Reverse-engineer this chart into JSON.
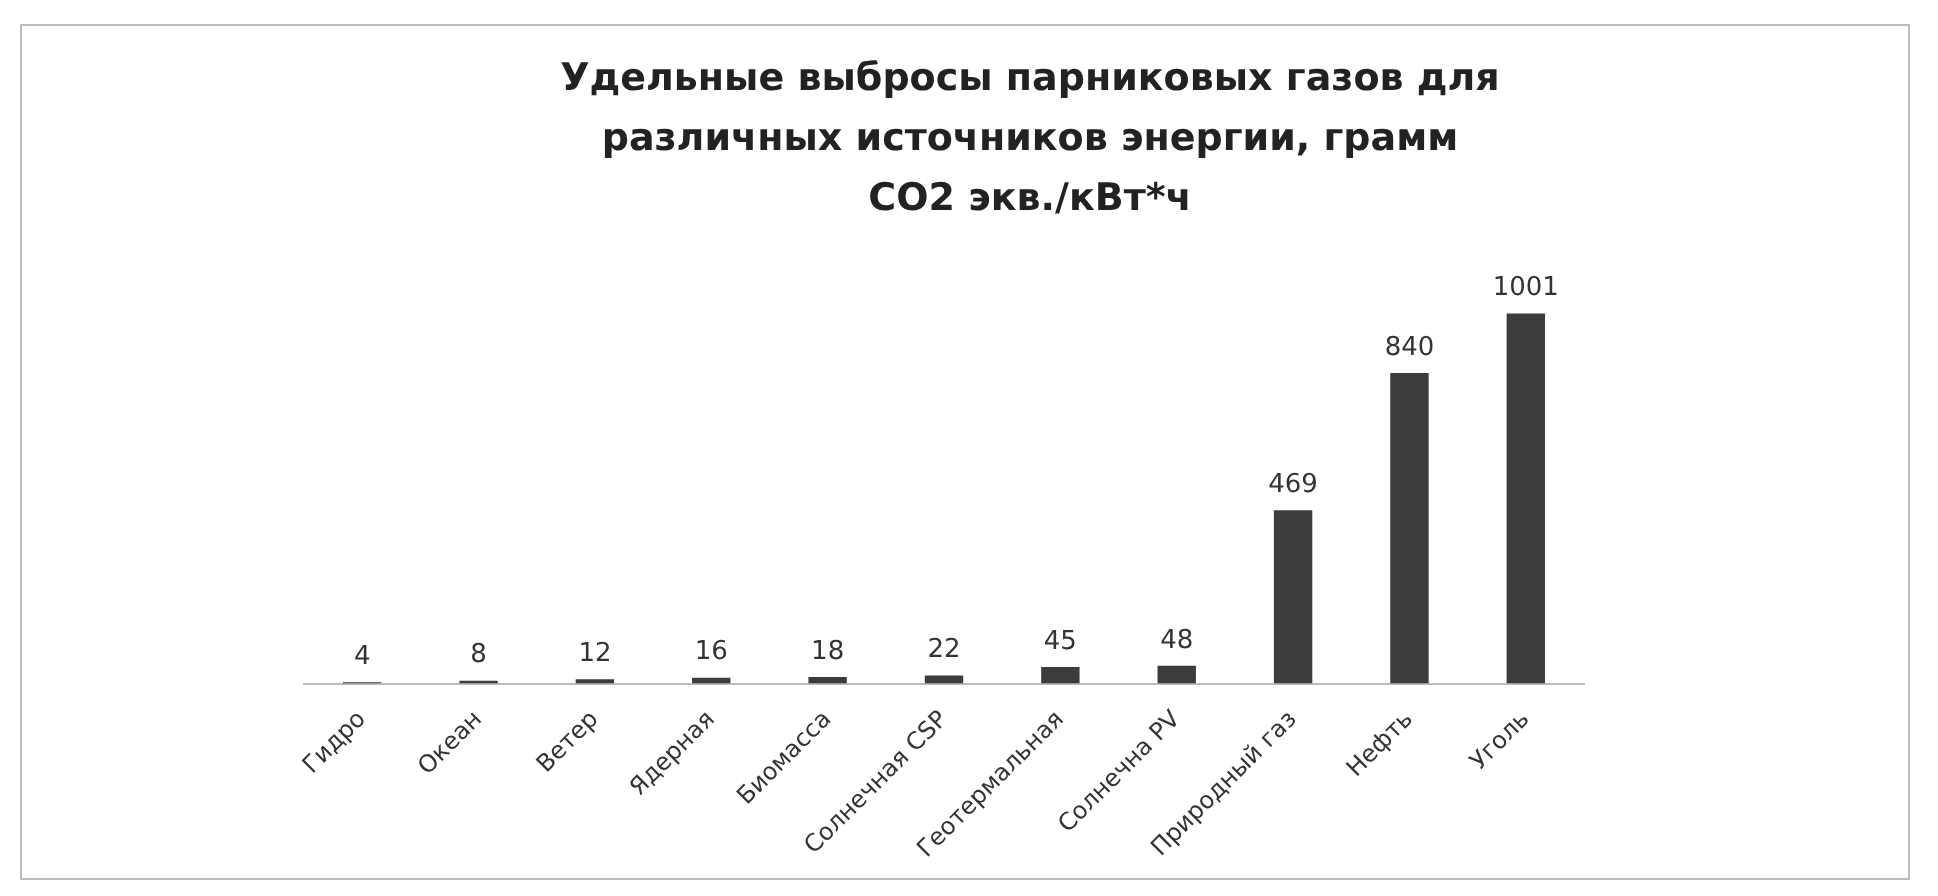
{
  "chart_data": {
    "type": "bar",
    "title": "Удельные выбросы парниковых газов для различных источников энергии, грамм CO2 экв./кВт*ч",
    "categories": [
      "Гидро",
      "Океан",
      "Ветер",
      "Ядерная",
      "Биомасса",
      "Солнечная CSP",
      "Геотермальная",
      "Солнечна PV",
      "Природный газ",
      "Нефть",
      "Уголь"
    ],
    "values": [
      4,
      8,
      12,
      16,
      18,
      22,
      45,
      48,
      469,
      840,
      1001
    ],
    "color": "#3c3c3c",
    "data_labels": true,
    "grid": false,
    "legend": false
  }
}
